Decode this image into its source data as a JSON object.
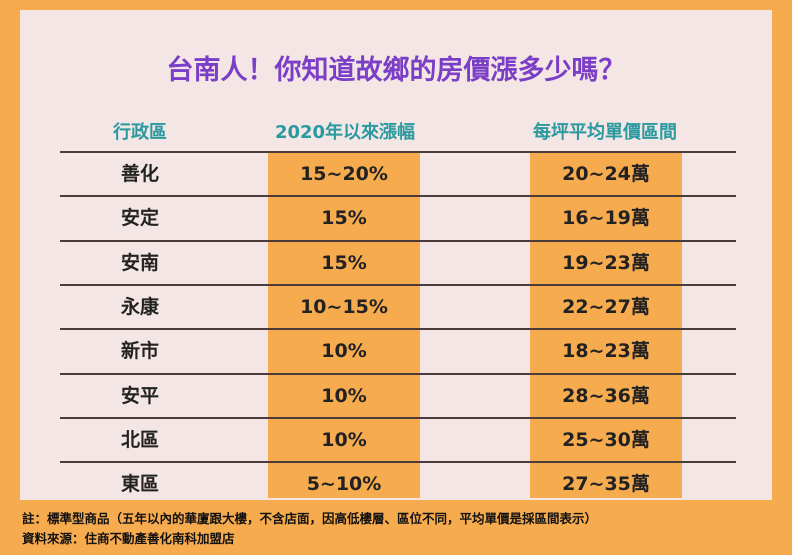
{
  "title": "台南人！你知道故鄉的房價漲多少嗎？",
  "table": {
    "headers": [
      "行政區",
      "2020年以來漲幅",
      "每坪平均單價區間"
    ],
    "rows": [
      [
        "善化",
        "15~20%",
        "20~24萬"
      ],
      [
        "安定",
        "15%",
        "16~19萬"
      ],
      [
        "安南",
        "15%",
        "19~23萬"
      ],
      [
        "永康",
        "10~15%",
        "22~27萬"
      ],
      [
        "新市",
        "10%",
        "18~23萬"
      ],
      [
        "安平",
        "10%",
        "28~36萬"
      ],
      [
        "北區",
        "10%",
        "25~30萬"
      ],
      [
        "東區",
        "5~10%",
        "27~35萬"
      ]
    ]
  },
  "notes": [
    "註：標準型商品（五年以內的華廈跟大樓，不含店面，因高低樓層、區位不同，平均單價是採區間表示）",
    "資料來源：住商不動產善化南科加盟店"
  ]
}
